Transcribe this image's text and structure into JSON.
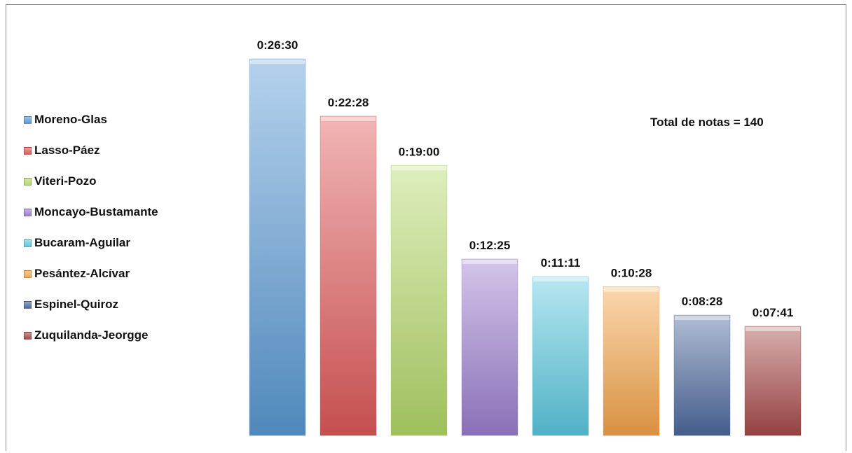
{
  "chart_data": {
    "type": "bar",
    "categories": [
      "Moreno-Glas",
      "Lasso-Páez",
      "Viteri-Pozo",
      "Moncayo-Bustamante",
      "Bucaram-Aguilar",
      "Pesántez-Alcívar",
      "Espinel-Quiroz",
      "Zuquilanda-Jeorgge"
    ],
    "values": [
      1590,
      1348,
      1140,
      745,
      671,
      628,
      508,
      461
    ],
    "value_labels": [
      "0:26:30",
      "0:22:28",
      "0:19:00",
      "0:12:25",
      "0:11:11",
      "0:10:28",
      "0:08:28",
      "0:07:41"
    ],
    "value_unit": "seconds",
    "colors": [
      "#5b9bd5",
      "#e05a5a",
      "#b5d96a",
      "#9d7fd0",
      "#5cc9e0",
      "#f6a54a",
      "#4d6a9e",
      "#a84a4a"
    ],
    "ylim": [
      0,
      1590
    ],
    "grid": false,
    "legend_position": "left",
    "annotation": "Total de notas = 140"
  }
}
